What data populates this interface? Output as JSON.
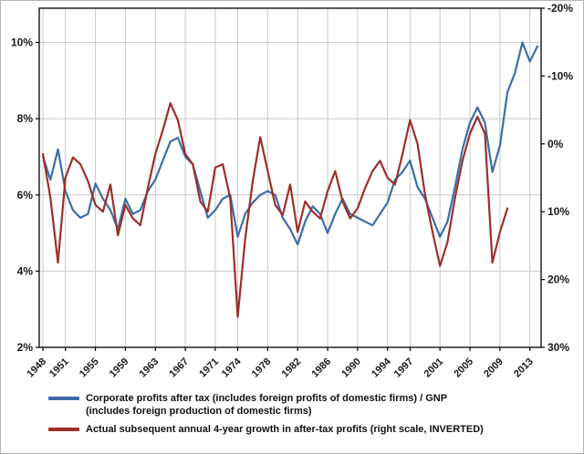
{
  "figure": {
    "background": "#ffffff",
    "border_color": "#b5b5b5",
    "grid_color": "#c8c8c8",
    "axis_color": "#000000",
    "label_color": "#1a1a1a"
  },
  "chart_data": {
    "type": "line",
    "title": "",
    "xlabel": "",
    "ylabel": "",
    "grid": true,
    "legend_position": "bottom-left",
    "x_axis": {
      "range": [
        1947.5,
        2014.5
      ],
      "tick_years": [
        1948,
        1951,
        1955,
        1959,
        1963,
        1967,
        1971,
        1974,
        1978,
        1982,
        1986,
        1990,
        1994,
        1997,
        2001,
        2005,
        2009,
        2013
      ],
      "tick_labels": [
        "1948",
        "1951",
        "1955",
        "1959",
        "1963",
        "1967",
        "1971",
        "1974",
        "1978",
        "1982",
        "1986",
        "1990",
        "1994",
        "1997",
        "2001",
        "2005",
        "2009",
        "2013"
      ]
    },
    "left_axis": {
      "tick_values": [
        10,
        8,
        6,
        4,
        2
      ],
      "tick_labels": [
        "10%",
        "8%",
        "6%",
        "4%",
        "2%"
      ],
      "top_value": 10.9,
      "bottom_value": 2
    },
    "right_axis": {
      "inverted": true,
      "tick_values": [
        -20,
        -10,
        0,
        10,
        20,
        30
      ],
      "tick_labels": [
        "-20%",
        "-10%",
        "0%",
        "10%",
        "20%",
        "30%"
      ]
    },
    "series": [
      {
        "name": "profits_gnp",
        "axis": "left",
        "color": "#3c6da8",
        "line_width": 2.2,
        "start_year": 1948,
        "lines": [
          "Corporate profits after tax (includes foreign profits of domestic firms) / GNP",
          "(includes foreign production of domestic firms)"
        ],
        "values": [
          7.0,
          6.4,
          7.2,
          6.1,
          5.6,
          5.4,
          5.5,
          6.3,
          5.9,
          5.6,
          5.1,
          5.9,
          5.5,
          5.6,
          6.1,
          6.4,
          6.9,
          7.4,
          7.5,
          7.0,
          6.8,
          6.1,
          5.4,
          5.6,
          5.9,
          6.0,
          4.9,
          5.5,
          5.8,
          6.0,
          6.1,
          6.0,
          5.4,
          5.1,
          4.7,
          5.3,
          5.7,
          5.5,
          5.0,
          5.5,
          5.9,
          5.5,
          5.4,
          5.3,
          5.2,
          5.5,
          5.8,
          6.4,
          6.6,
          6.9,
          6.2,
          5.9,
          5.4,
          4.9,
          5.3,
          6.2,
          7.2,
          7.9,
          8.3,
          7.9,
          6.6,
          7.3,
          8.7,
          9.2,
          10.0,
          9.5,
          9.9
        ]
      },
      {
        "name": "subsequent_growth",
        "axis": "right",
        "color": "#9c2f2a",
        "line_width": 2.2,
        "start_year": 1948,
        "lines": [
          "Actual subsequent annual 4-year growth in after-tax profits (right scale, INVERTED)"
        ],
        "values": [
          1.5,
          8.0,
          17.5,
          5.0,
          2.0,
          3.0,
          5.5,
          9.0,
          10.0,
          6.0,
          13.5,
          9.0,
          11.0,
          12.0,
          6.5,
          1.5,
          -2.0,
          -6.0,
          -3.5,
          1.5,
          3.0,
          8.5,
          10.0,
          3.5,
          3.0,
          8.0,
          25.5,
          14.0,
          5.5,
          -1.0,
          4.0,
          9.0,
          10.5,
          6.0,
          13.0,
          8.5,
          10.0,
          11.0,
          7.0,
          4.0,
          8.5,
          11.0,
          9.5,
          6.5,
          4.0,
          2.5,
          5.0,
          6.0,
          1.5,
          -3.5,
          0.0,
          7.5,
          13.0,
          18.0,
          14.5,
          8.0,
          2.5,
          -1.5,
          -4.0,
          -1.5,
          17.5,
          13.0,
          9.5
        ]
      }
    ]
  }
}
